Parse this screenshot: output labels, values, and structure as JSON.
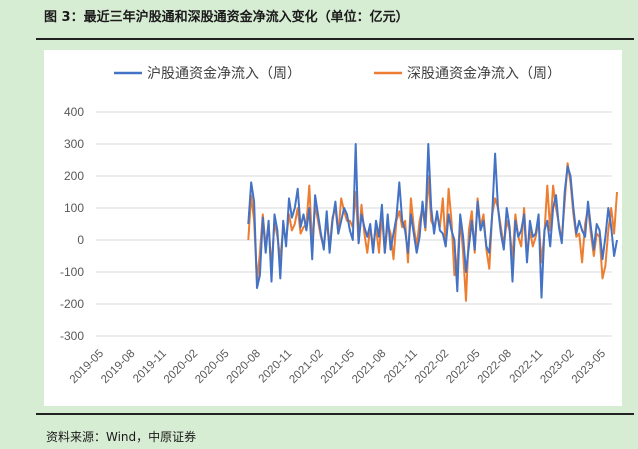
{
  "figure": {
    "title": "图 3：最近三年沪股通和深股通资金净流入变化（单位：亿元）",
    "source": "资料来源：Wind，中原证券"
  },
  "colors": {
    "sh": "#4472c4",
    "sz": "#ed7d31",
    "grid": "#d9d9d9",
    "tick": "#595959"
  },
  "chart_data": {
    "type": "line",
    "title": "",
    "xlabel": "",
    "ylabel": "",
    "ylim": [
      -300,
      400
    ],
    "yticks": [
      400,
      300,
      200,
      100,
      0,
      -100,
      -200,
      -300
    ],
    "x_tick_labels": [
      "2019-05",
      "2019-08",
      "2019-11",
      "2020-02",
      "2020-05",
      "2020-08",
      "2020-11",
      "2021-02",
      "2021-05",
      "2021-08",
      "2021-11",
      "2022-02",
      "2022-05",
      "2022-08",
      "2022-11",
      "2023-02",
      "2023-05"
    ],
    "legend_position": "top",
    "grid": true,
    "x_start": "2020-07",
    "x_step": "1 week",
    "series": [
      {
        "name": "沪股通资金净流入（周）",
        "color": "#4472c4",
        "values": [
          50,
          180,
          120,
          -150,
          -110,
          70,
          -40,
          60,
          -130,
          80,
          30,
          -120,
          60,
          -20,
          130,
          70,
          100,
          160,
          40,
          80,
          30,
          100,
          -60,
          140,
          80,
          20,
          -30,
          90,
          -40,
          60,
          120,
          20,
          60,
          100,
          80,
          30,
          0,
          300,
          -10,
          80,
          40,
          10,
          50,
          -40,
          60,
          10,
          110,
          -40,
          80,
          -30,
          20,
          70,
          180,
          60,
          30,
          -40,
          80,
          20,
          -40,
          10,
          120,
          40,
          300,
          100,
          20,
          90,
          30,
          20,
          -20,
          80,
          30,
          0,
          -160,
          80,
          10,
          -100,
          -20,
          60,
          -30,
          120,
          30,
          60,
          -20,
          -40,
          80,
          270,
          100,
          20,
          -30,
          100,
          40,
          -130,
          60,
          10,
          30,
          80,
          -70,
          60,
          10,
          20,
          80,
          -180,
          30,
          60,
          -20,
          100,
          140,
          40,
          -10,
          150,
          230,
          200,
          100,
          20,
          60,
          30,
          10,
          120,
          40,
          -30,
          50,
          30,
          -60,
          10,
          100,
          40,
          -50,
          0
        ]
      },
      {
        "name": "深股通资金净流入（周）",
        "color": "#ed7d31",
        "values": [
          0,
          140,
          60,
          -130,
          -40,
          80,
          -20,
          50,
          -90,
          60,
          10,
          -60,
          40,
          0,
          80,
          30,
          50,
          100,
          20,
          40,
          50,
          170,
          -20,
          110,
          60,
          10,
          -20,
          60,
          -20,
          70,
          100,
          20,
          130,
          90,
          60,
          60,
          40,
          150,
          -10,
          110,
          20,
          -40,
          40,
          -20,
          40,
          -40,
          80,
          -40,
          50,
          20,
          -60,
          60,
          90,
          40,
          60,
          -70,
          130,
          40,
          -20,
          60,
          100,
          30,
          200,
          60,
          40,
          80,
          40,
          130,
          -20,
          160,
          60,
          -110,
          -80,
          70,
          -40,
          -190,
          30,
          90,
          -40,
          130,
          40,
          80,
          -30,
          -90,
          80,
          130,
          100,
          40,
          -20,
          60,
          30,
          -60,
          80,
          10,
          -20,
          100,
          -50,
          30,
          -20,
          10,
          60,
          -70,
          20,
          170,
          30,
          170,
          100,
          50,
          0,
          120,
          240,
          180,
          80,
          10,
          20,
          -70,
          50,
          100,
          20,
          -50,
          20,
          10,
          -120,
          -80,
          30,
          100,
          20,
          150
        ]
      }
    ]
  }
}
